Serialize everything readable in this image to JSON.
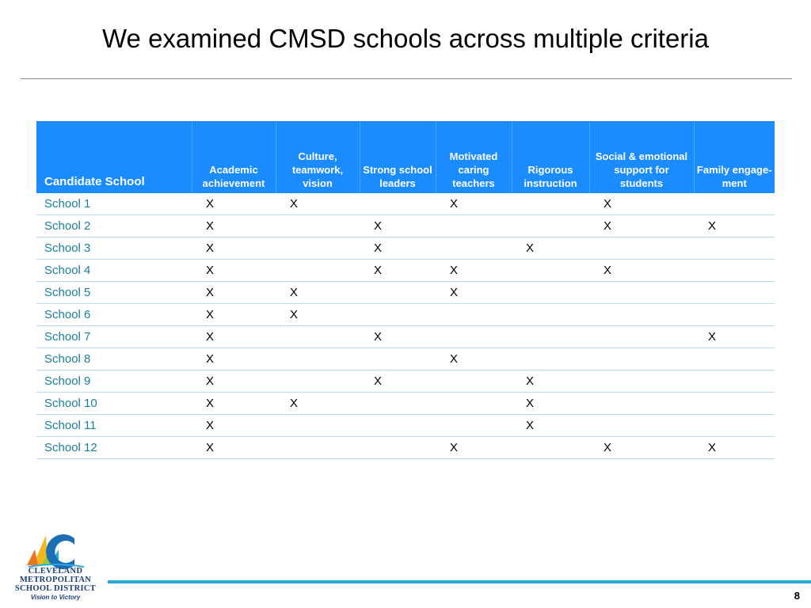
{
  "title": "We examined CMSD schools across multiple criteria",
  "table": {
    "headers": [
      "Candidate School",
      "Academic achievement",
      "Culture, teamwork, vision",
      "Strong school leaders",
      "Motivated caring teachers",
      "Rigorous instruction",
      "Social & emotional support for students",
      "Family engage-ment"
    ],
    "rows": [
      {
        "name": "School 1",
        "marks": [
          "X",
          "X",
          "",
          "X",
          "",
          "X",
          ""
        ]
      },
      {
        "name": "School 2",
        "marks": [
          "X",
          "",
          "X",
          "",
          "",
          "X",
          "X"
        ]
      },
      {
        "name": "School 3",
        "marks": [
          "X",
          "",
          "X",
          "",
          "X",
          "",
          ""
        ]
      },
      {
        "name": "School 4",
        "marks": [
          "X",
          "",
          "X",
          "X",
          "",
          "X",
          ""
        ]
      },
      {
        "name": "School 5",
        "marks": [
          "X",
          "X",
          "",
          "X",
          "",
          "",
          ""
        ]
      },
      {
        "name": "School 6",
        "marks": [
          "X",
          "X",
          "",
          "",
          "",
          "",
          ""
        ]
      },
      {
        "name": "School 7",
        "marks": [
          "X",
          "",
          "X",
          "",
          "",
          "",
          "X"
        ]
      },
      {
        "name": "School 8",
        "marks": [
          "X",
          "",
          "",
          "X",
          "",
          "",
          ""
        ]
      },
      {
        "name": "School 9",
        "marks": [
          "X",
          "",
          "X",
          "",
          "X",
          "",
          ""
        ]
      },
      {
        "name": "School 10",
        "marks": [
          "X",
          "X",
          "",
          "",
          "X",
          "",
          ""
        ]
      },
      {
        "name": "School 11",
        "marks": [
          "X",
          "",
          "",
          "",
          "X",
          "",
          ""
        ]
      },
      {
        "name": "School 12",
        "marks": [
          "X",
          "",
          "",
          "X",
          "",
          "X",
          "X"
        ]
      }
    ]
  },
  "logo": {
    "lines": [
      "CLEVELAND",
      "METROPOLITAN",
      "SCHOOL DISTRICT"
    ],
    "tagline": "Vision to Victory"
  },
  "page_number": "8",
  "colors": {
    "header_bg": "#1a8cff",
    "school_name": "#1a7f9a",
    "footer_bar": "#2aa7e0",
    "logo_text": "#1b3f7a"
  }
}
